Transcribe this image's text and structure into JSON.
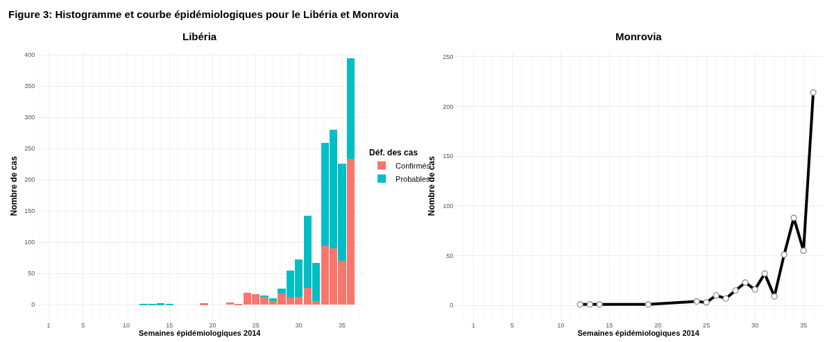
{
  "chart_data": [
    {
      "type": "bar",
      "title": "Libéria",
      "xlabel": "Semaines épidémiologiques 2014",
      "ylabel": "Nombre de cas",
      "legend_title": "Déf. des cas",
      "stacked": true,
      "x": [
        12,
        13,
        14,
        15,
        19,
        22,
        23,
        24,
        25,
        26,
        27,
        28,
        29,
        30,
        31,
        32,
        33,
        34,
        35,
        36
      ],
      "series": [
        {
          "name": "Confirmés",
          "color": "#f8766d",
          "values": [
            null,
            null,
            null,
            null,
            2,
            4,
            1,
            19,
            17,
            12,
            6,
            18,
            11,
            13,
            27,
            6,
            95,
            90,
            70,
            233
          ]
        },
        {
          "name": "Probables",
          "color": "#00bfc4",
          "values": [
            1,
            1,
            2,
            1,
            null,
            null,
            null,
            null,
            null,
            3,
            4,
            8,
            44,
            59,
            115,
            61,
            164,
            190,
            156,
            161
          ]
        }
      ],
      "xlim": [
        -0.5,
        37.5
      ],
      "xticks": [
        1,
        5,
        10,
        15,
        20,
        25,
        30,
        35
      ],
      "ylim": [
        -25,
        405
      ],
      "yticks": [
        0,
        50,
        100,
        150,
        200,
        250,
        300,
        350,
        400
      ],
      "grid": true,
      "legend": "right",
      "annotations": [
        "Figure 3: Histogramme et courbe épidémiologiques pour le Libéria et Monrovia"
      ]
    },
    {
      "type": "line",
      "title": "Monrovia",
      "xlabel": "Semaines épidémiologiques 2014",
      "ylabel": "Nombre de cas",
      "x": [
        12,
        13,
        14,
        19,
        24,
        25,
        26,
        27,
        28,
        29,
        30,
        31,
        32,
        33,
        34,
        35,
        36
      ],
      "series": [
        {
          "color": "#000000",
          "values": [
            1,
            1,
            1,
            1,
            4,
            3,
            10,
            7,
            15,
            23,
            16,
            32,
            9,
            51,
            88,
            55,
            214
          ]
        }
      ],
      "xlim": [
        -1,
        37
      ],
      "xticks": [
        1,
        5,
        10,
        15,
        20,
        25,
        30,
        35
      ],
      "ylim": [
        -15,
        255
      ],
      "yticks": [
        0,
        50,
        100,
        150,
        200,
        250
      ],
      "grid": true,
      "marker": "circle",
      "line_style": "solid",
      "legend": false
    }
  ]
}
